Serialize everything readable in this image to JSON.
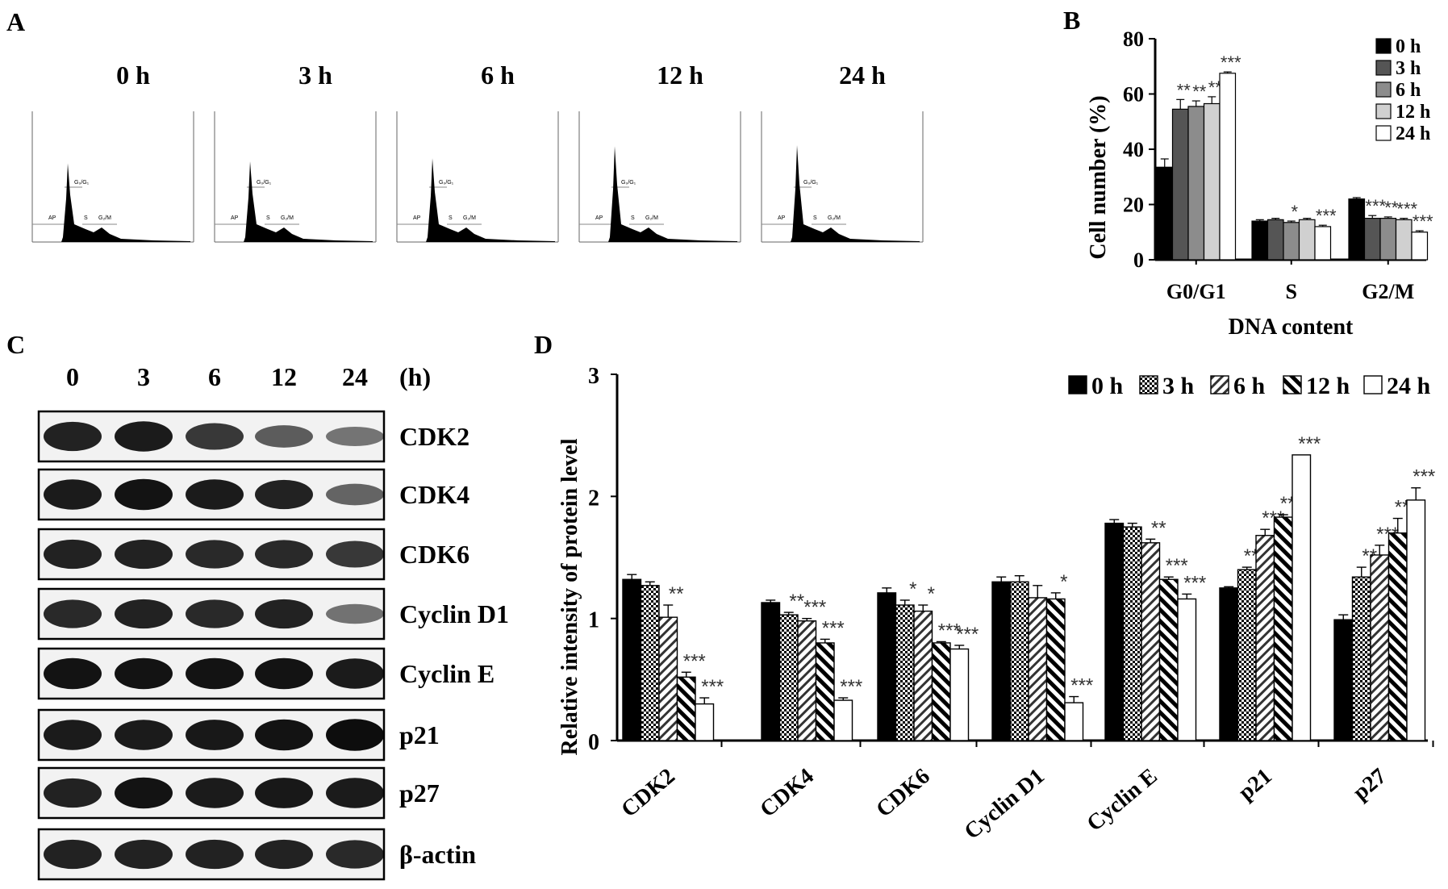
{
  "panel_labels": [
    "A",
    "B",
    "C",
    "D"
  ],
  "histograms": [
    {
      "time": "0 h",
      "peak": 0.78
    },
    {
      "time": "3 h",
      "peak": 0.8
    },
    {
      "time": "6 h",
      "peak": 0.83
    },
    {
      "time": "12 h",
      "peak": 0.95
    },
    {
      "time": "24 h",
      "peak": 0.96
    }
  ],
  "histogram_labels": {
    "ap": "AP",
    "g0g1": "G₀/G₁",
    "s": "S",
    "g2m": "G₂/M"
  },
  "western_blot": {
    "times": [
      "0",
      "3",
      "6",
      "12",
      "24"
    ],
    "unit": "(h)",
    "proteins": [
      {
        "name": "CDK2",
        "intensity": [
          0.85,
          0.9,
          0.7,
          0.45,
          0.28
        ]
      },
      {
        "name": "CDK4",
        "intensity": [
          0.9,
          0.95,
          0.9,
          0.85,
          0.4
        ]
      },
      {
        "name": "CDK6",
        "intensity": [
          0.85,
          0.85,
          0.8,
          0.8,
          0.7
        ]
      },
      {
        "name": "Cyclin D1",
        "intensity": [
          0.8,
          0.85,
          0.8,
          0.85,
          0.3
        ]
      },
      {
        "name": "Cyclin E",
        "intensity": [
          0.95,
          0.95,
          0.95,
          0.95,
          0.9
        ]
      },
      {
        "name": "p21",
        "intensity": [
          0.9,
          0.9,
          0.92,
          0.95,
          1.0
        ]
      },
      {
        "name": "p27",
        "intensity": [
          0.85,
          0.95,
          0.9,
          0.92,
          0.9
        ]
      },
      {
        "name": "β-actin",
        "intensity": [
          0.85,
          0.85,
          0.85,
          0.85,
          0.8
        ]
      }
    ]
  },
  "chart_data": [
    {
      "panel": "B",
      "type": "bar",
      "xlabel": "DNA content",
      "ylabel": "Cell number (%)",
      "ylim": [
        0,
        80
      ],
      "yticks": [
        0,
        20,
        40,
        60,
        80
      ],
      "categories": [
        "G0/G1",
        "S",
        "G2/M"
      ],
      "legend_position": "top-right",
      "series": [
        {
          "name": "0 h",
          "color": "#000000",
          "values": [
            33.5,
            14,
            22
          ],
          "errors": [
            3,
            0.5,
            0.5
          ],
          "sig": [
            "",
            "",
            ""
          ]
        },
        {
          "name": "3 h",
          "color": "#555555",
          "values": [
            54.5,
            14.5,
            15
          ],
          "errors": [
            3.5,
            0.5,
            1
          ],
          "sig": [
            "**",
            "",
            "***"
          ]
        },
        {
          "name": "6 h",
          "color": "#8c8c8c",
          "values": [
            55.5,
            13.5,
            15
          ],
          "errors": [
            2,
            0.5,
            0.5
          ],
          "sig": [
            "**",
            "*",
            "**"
          ]
        },
        {
          "name": "12 h",
          "color": "#d0d0d0",
          "values": [
            56.5,
            14.5,
            14.5
          ],
          "errors": [
            2.5,
            0.5,
            0.5
          ],
          "sig": [
            "**",
            "",
            "***"
          ]
        },
        {
          "name": "24 h",
          "color": "#ffffff",
          "values": [
            67.5,
            12,
            10
          ],
          "errors": [
            0.5,
            0.5,
            0.5
          ],
          "sig": [
            "***",
            "***",
            "***"
          ]
        }
      ]
    },
    {
      "panel": "D",
      "type": "bar",
      "ylabel": "Relative intensity of protein level",
      "ylim": [
        0,
        3
      ],
      "yticks": [
        0,
        1,
        2,
        3
      ],
      "categories": [
        "CDK2",
        "CDK4",
        "CDK6",
        "Cyclin D1",
        "Cyclin E",
        "p21",
        "p27"
      ],
      "legend_position": "top-right",
      "series": [
        {
          "name": "0 h",
          "pattern": "solid",
          "values": [
            1.32,
            1.13,
            1.21,
            1.3,
            1.78,
            1.25,
            0.99
          ],
          "errors": [
            0.04,
            0.02,
            0.04,
            0.04,
            0.03,
            0.01,
            0.04
          ],
          "sig": [
            "",
            "",
            "",
            "",
            "",
            "",
            ""
          ]
        },
        {
          "name": "3 h",
          "pattern": "checker",
          "values": [
            1.27,
            1.03,
            1.11,
            1.3,
            1.75,
            1.4,
            1.34
          ],
          "errors": [
            0.03,
            0.02,
            0.04,
            0.05,
            0.03,
            0.02,
            0.08
          ],
          "sig": [
            "",
            "**",
            "*",
            "",
            "",
            "***",
            "**"
          ]
        },
        {
          "name": "6 h",
          "pattern": "diag",
          "values": [
            1.01,
            0.98,
            1.06,
            1.17,
            1.62,
            1.68,
            1.52
          ],
          "errors": [
            0.1,
            0.02,
            0.05,
            0.1,
            0.03,
            0.05,
            0.08
          ],
          "sig": [
            "**",
            "***",
            "*",
            "",
            "**",
            "***",
            "***"
          ]
        },
        {
          "name": "12 h",
          "pattern": "antidiag",
          "values": [
            0.52,
            0.8,
            0.8,
            1.16,
            1.32,
            1.83,
            1.7
          ],
          "errors": [
            0.04,
            0.03,
            0.01,
            0.05,
            0.02,
            0.02,
            0.12
          ],
          "sig": [
            "***",
            "***",
            "***",
            "*",
            "***",
            "***",
            "***"
          ]
        },
        {
          "name": "24 h",
          "pattern": "open",
          "values": [
            0.3,
            0.33,
            0.75,
            0.31,
            1.16,
            2.34,
            1.97
          ],
          "errors": [
            0.05,
            0.02,
            0.03,
            0.05,
            0.04,
            0.0,
            0.1
          ],
          "sig": [
            "***",
            "***",
            "***",
            "***",
            "***",
            "***",
            "***"
          ]
        }
      ]
    }
  ]
}
